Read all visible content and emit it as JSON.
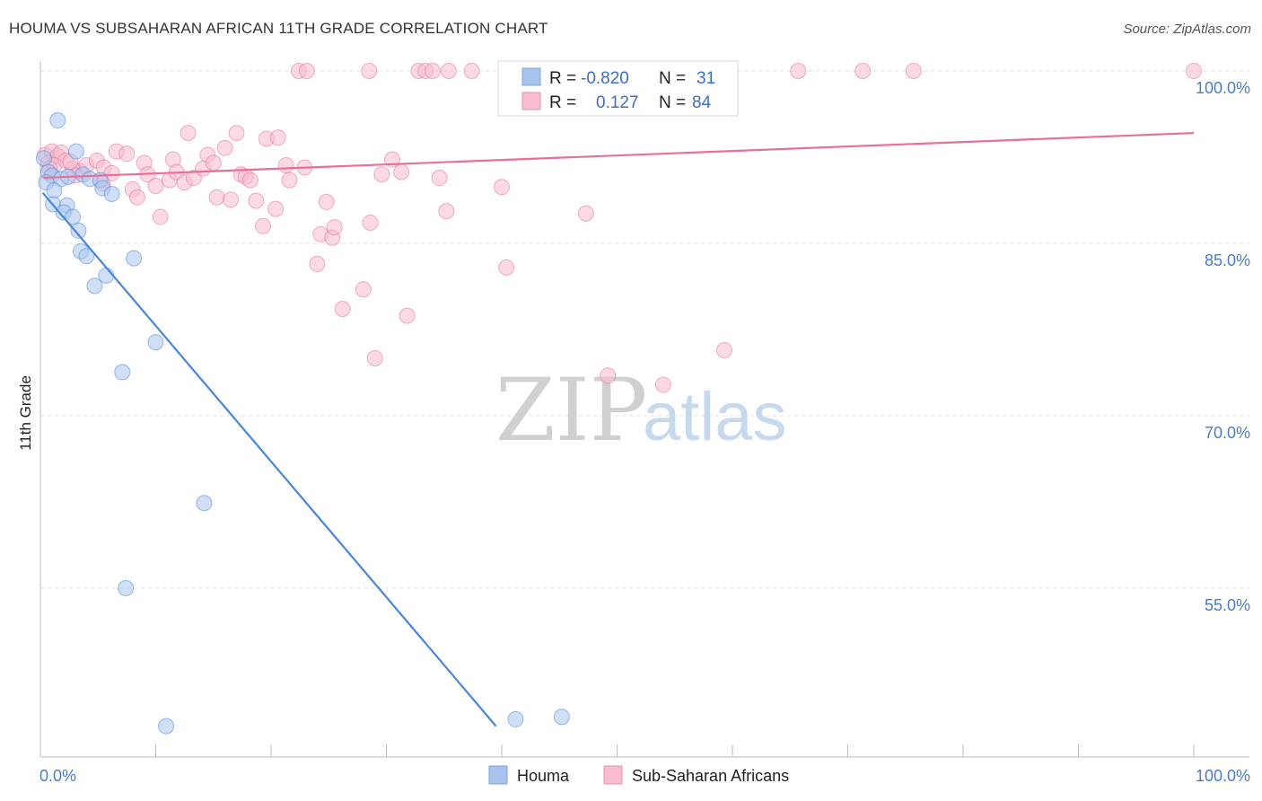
{
  "header": {
    "title": "HOUMA VS SUBSAHARAN AFRICAN 11TH GRADE CORRELATION CHART",
    "source": "Source: ZipAtlas.com"
  },
  "watermark": {
    "zip": "ZIP",
    "atlas": "atlas"
  },
  "legend": {
    "rows": [
      {
        "r_label": "R =",
        "r_value": "-0.820",
        "n_label": "N =",
        "n_value": "31",
        "color": "#a9c4ec"
      },
      {
        "r_label": "R =",
        "r_value": "0.127",
        "n_label": "N =",
        "n_value": "84",
        "color": "#f7bccd"
      }
    ]
  },
  "bottom_legend": {
    "houma": "Houma",
    "subsaharan": "Sub-Saharan Africans"
  },
  "chart_data": {
    "type": "scatter",
    "title": "HOUMA VS SUBSAHARAN AFRICAN 11TH GRADE CORRELATION CHART",
    "ylabel": "11th Grade",
    "xlabel": "",
    "xlim": [
      0,
      100
    ],
    "ylim": [
      43,
      101.5
    ],
    "x_tick_labels": [
      "0.0%",
      "100.0%"
    ],
    "y_ticks": [
      {
        "value": 100,
        "label": "100.0%"
      },
      {
        "value": 85,
        "label": "85.0%"
      },
      {
        "value": 70,
        "label": "70.0%"
      },
      {
        "value": 55,
        "label": "55.0%"
      }
    ],
    "grid": "horizontal dashed",
    "legend_position": "top-center",
    "series": [
      {
        "name": "Houma",
        "color": "#4a86d8",
        "fill": "#a9c4ec",
        "trend": {
          "x": [
            0.2,
            39.5
          ],
          "y": [
            89.4,
            43.0
          ]
        },
        "points": [
          [
            1.5,
            95.7
          ],
          [
            0.3,
            92.4
          ],
          [
            0.7,
            91.2
          ],
          [
            1.0,
            90.9
          ],
          [
            1.8,
            90.6
          ],
          [
            2.4,
            90.8
          ],
          [
            0.5,
            90.3
          ],
          [
            1.2,
            89.6
          ],
          [
            3.1,
            93.0
          ],
          [
            3.7,
            91.0
          ],
          [
            4.3,
            90.6
          ],
          [
            5.2,
            90.5
          ],
          [
            5.4,
            89.8
          ],
          [
            6.2,
            89.3
          ],
          [
            1.1,
            88.4
          ],
          [
            2.3,
            88.3
          ],
          [
            2.0,
            87.7
          ],
          [
            2.8,
            87.3
          ],
          [
            3.3,
            86.1
          ],
          [
            3.5,
            84.3
          ],
          [
            4.0,
            83.9
          ],
          [
            5.7,
            82.2
          ],
          [
            8.1,
            83.7
          ],
          [
            4.7,
            81.3
          ],
          [
            10.0,
            76.4
          ],
          [
            7.1,
            73.8
          ],
          [
            14.2,
            62.4
          ],
          [
            7.4,
            55.0
          ],
          [
            10.9,
            43.0
          ],
          [
            41.2,
            43.6
          ],
          [
            45.2,
            43.8
          ]
        ]
      },
      {
        "name": "Sub-Saharan Africans",
        "color": "#e76f9a",
        "fill": "#f7bccd",
        "trend": {
          "x": [
            0.2,
            100
          ],
          "y": [
            90.7,
            94.6
          ]
        },
        "points": [
          [
            22.4,
            100
          ],
          [
            23.1,
            100
          ],
          [
            28.5,
            100
          ],
          [
            32.8,
            100
          ],
          [
            33.4,
            100
          ],
          [
            34.0,
            100
          ],
          [
            35.4,
            100
          ],
          [
            37.4,
            100
          ],
          [
            41.2,
            98.5
          ],
          [
            54.1,
            100
          ],
          [
            65.7,
            100
          ],
          [
            71.3,
            100
          ],
          [
            75.7,
            100
          ],
          [
            100.0,
            100
          ],
          [
            0.4,
            92.7
          ],
          [
            1.0,
            93.0
          ],
          [
            1.5,
            92.6
          ],
          [
            1.8,
            92.9
          ],
          [
            0.7,
            92.0
          ],
          [
            1.2,
            91.8
          ],
          [
            2.2,
            92.2
          ],
          [
            2.8,
            91.5
          ],
          [
            3.4,
            91.3
          ],
          [
            4.0,
            91.8
          ],
          [
            4.9,
            92.2
          ],
          [
            5.5,
            91.6
          ],
          [
            3.0,
            90.9
          ],
          [
            6.2,
            91.1
          ],
          [
            6.6,
            93.0
          ],
          [
            7.5,
            92.8
          ],
          [
            5.4,
            90.2
          ],
          [
            8.0,
            89.7
          ],
          [
            8.4,
            89.0
          ],
          [
            9.0,
            92.0
          ],
          [
            9.3,
            91.0
          ],
          [
            10.0,
            90.0
          ],
          [
            10.4,
            87.3
          ],
          [
            11.2,
            90.5
          ],
          [
            11.5,
            92.3
          ],
          [
            11.8,
            91.2
          ],
          [
            12.5,
            90.3
          ],
          [
            12.8,
            94.6
          ],
          [
            13.3,
            90.7
          ],
          [
            14.1,
            91.5
          ],
          [
            14.5,
            92.7
          ],
          [
            15.0,
            92.0
          ],
          [
            15.3,
            89.0
          ],
          [
            16.0,
            93.3
          ],
          [
            16.5,
            88.8
          ],
          [
            17.0,
            94.6
          ],
          [
            17.4,
            91.0
          ],
          [
            17.8,
            90.8
          ],
          [
            18.2,
            90.5
          ],
          [
            18.7,
            88.7
          ],
          [
            19.3,
            86.5
          ],
          [
            19.6,
            94.1
          ],
          [
            20.4,
            88.0
          ],
          [
            20.6,
            94.2
          ],
          [
            21.3,
            91.8
          ],
          [
            21.6,
            90.5
          ],
          [
            22.9,
            91.6
          ],
          [
            24.0,
            83.2
          ],
          [
            24.3,
            85.8
          ],
          [
            24.8,
            88.6
          ],
          [
            25.3,
            85.5
          ],
          [
            25.5,
            86.4
          ],
          [
            26.2,
            79.3
          ],
          [
            28.0,
            81.0
          ],
          [
            28.6,
            86.8
          ],
          [
            29.0,
            75.0
          ],
          [
            29.6,
            91.0
          ],
          [
            30.5,
            92.3
          ],
          [
            31.3,
            91.2
          ],
          [
            31.8,
            78.7
          ],
          [
            34.6,
            90.7
          ],
          [
            35.2,
            87.8
          ],
          [
            40.0,
            89.9
          ],
          [
            40.4,
            82.9
          ],
          [
            47.3,
            87.6
          ],
          [
            49.2,
            73.5
          ],
          [
            54.0,
            72.7
          ],
          [
            59.3,
            75.7
          ],
          [
            0.8,
            91.5
          ],
          [
            2.6,
            92.1
          ]
        ]
      }
    ]
  }
}
